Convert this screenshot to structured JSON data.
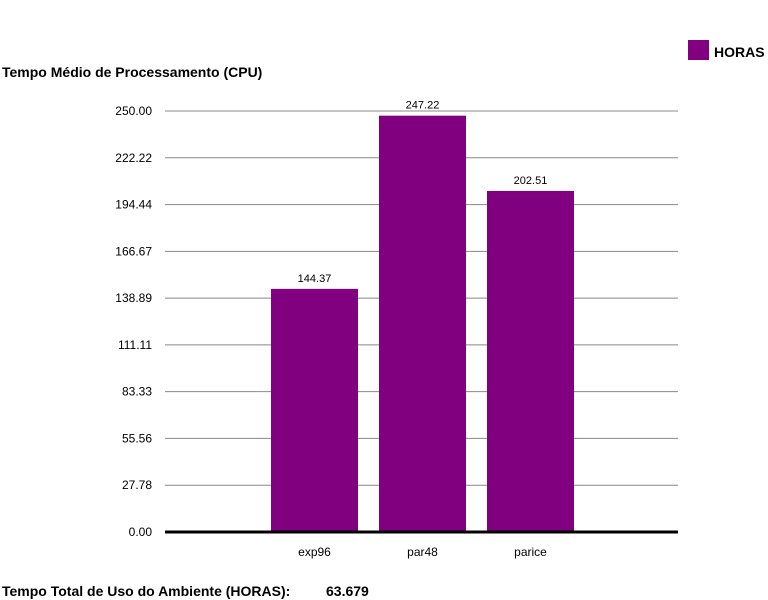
{
  "chart_data": {
    "type": "bar",
    "title": "Tempo Médio de Processamento (CPU)",
    "categories": [
      "exp96",
      "par48",
      "parice"
    ],
    "series": [
      {
        "name": "HORAS",
        "values": [
          144.37,
          247.22,
          202.51
        ]
      }
    ],
    "data_labels": [
      "144.37",
      "247.22",
      "202.51"
    ],
    "y_ticks": [
      "0.00",
      "27.78",
      "55.56",
      "83.33",
      "111.11",
      "138.89",
      "166.67",
      "194.44",
      "222.22",
      "250.00"
    ],
    "ylim": [
      0,
      250
    ],
    "grid": true,
    "legend_position": "top-right",
    "colors": {
      "bar": "#800080"
    }
  },
  "footer": {
    "label": "Tempo Total de Uso do Ambiente (HORAS):",
    "value": "63.679"
  }
}
